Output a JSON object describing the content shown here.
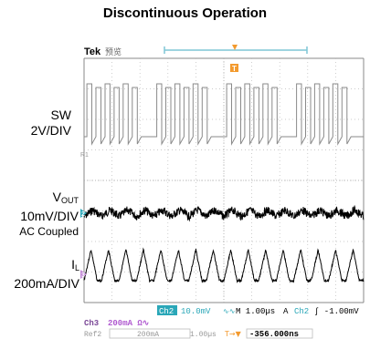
{
  "title": "Discontinuous Operation",
  "scope": {
    "brand": "Tek",
    "brand_suffix": "预览",
    "trigger_marker": "T",
    "sw_ref_marker": "R1",
    "vout_marker": "2",
    "il_marker": "3"
  },
  "channels": {
    "sw": {
      "name": "SW",
      "scale": "2V/DIV"
    },
    "vout": {
      "name": "V",
      "name_sub": "OUT",
      "scale": "10mV/DIV",
      "coupling": "AC Coupled"
    },
    "il": {
      "name": "I",
      "name_sub": "L",
      "scale": "200mA/DIV"
    }
  },
  "readout": {
    "ch2_tag": "Ch2",
    "ch2_scale": "10.0mV",
    "ch2_bw": "∿∿",
    "timebase": "M 1.00µs",
    "trigger_mode": "A",
    "trigger_ch": "Ch2",
    "trigger_level": "∫ -1.00mV",
    "ch3_tag": "Ch3",
    "ch3_scale": "200mA Ω∿",
    "ref2_tag": "Ref2",
    "ref2_scale": "200mA",
    "ref2_time": "1.00µs",
    "trigger_pos_label": "T→▼",
    "trigger_pos_value": "-356.000ns"
  },
  "chart_data": {
    "type": "line",
    "title": "Discontinuous Operation",
    "x_unit": "µs",
    "x_per_div": 1.0,
    "xlim": [
      0,
      10
    ],
    "grid": true,
    "series": [
      {
        "name": "SW",
        "scale_per_div": "2V/DIV",
        "description": "switch node, bursts of pulses",
        "burst_count": 4,
        "pulses_per_burst": 6
      },
      {
        "name": "VOUT",
        "scale_per_div": "10mV/DIV",
        "coupling": "AC Coupled",
        "ripple_cycles": 16
      },
      {
        "name": "IL",
        "scale_per_div": "200mA/DIV",
        "shape": "triangular",
        "cycles": 16
      }
    ]
  }
}
